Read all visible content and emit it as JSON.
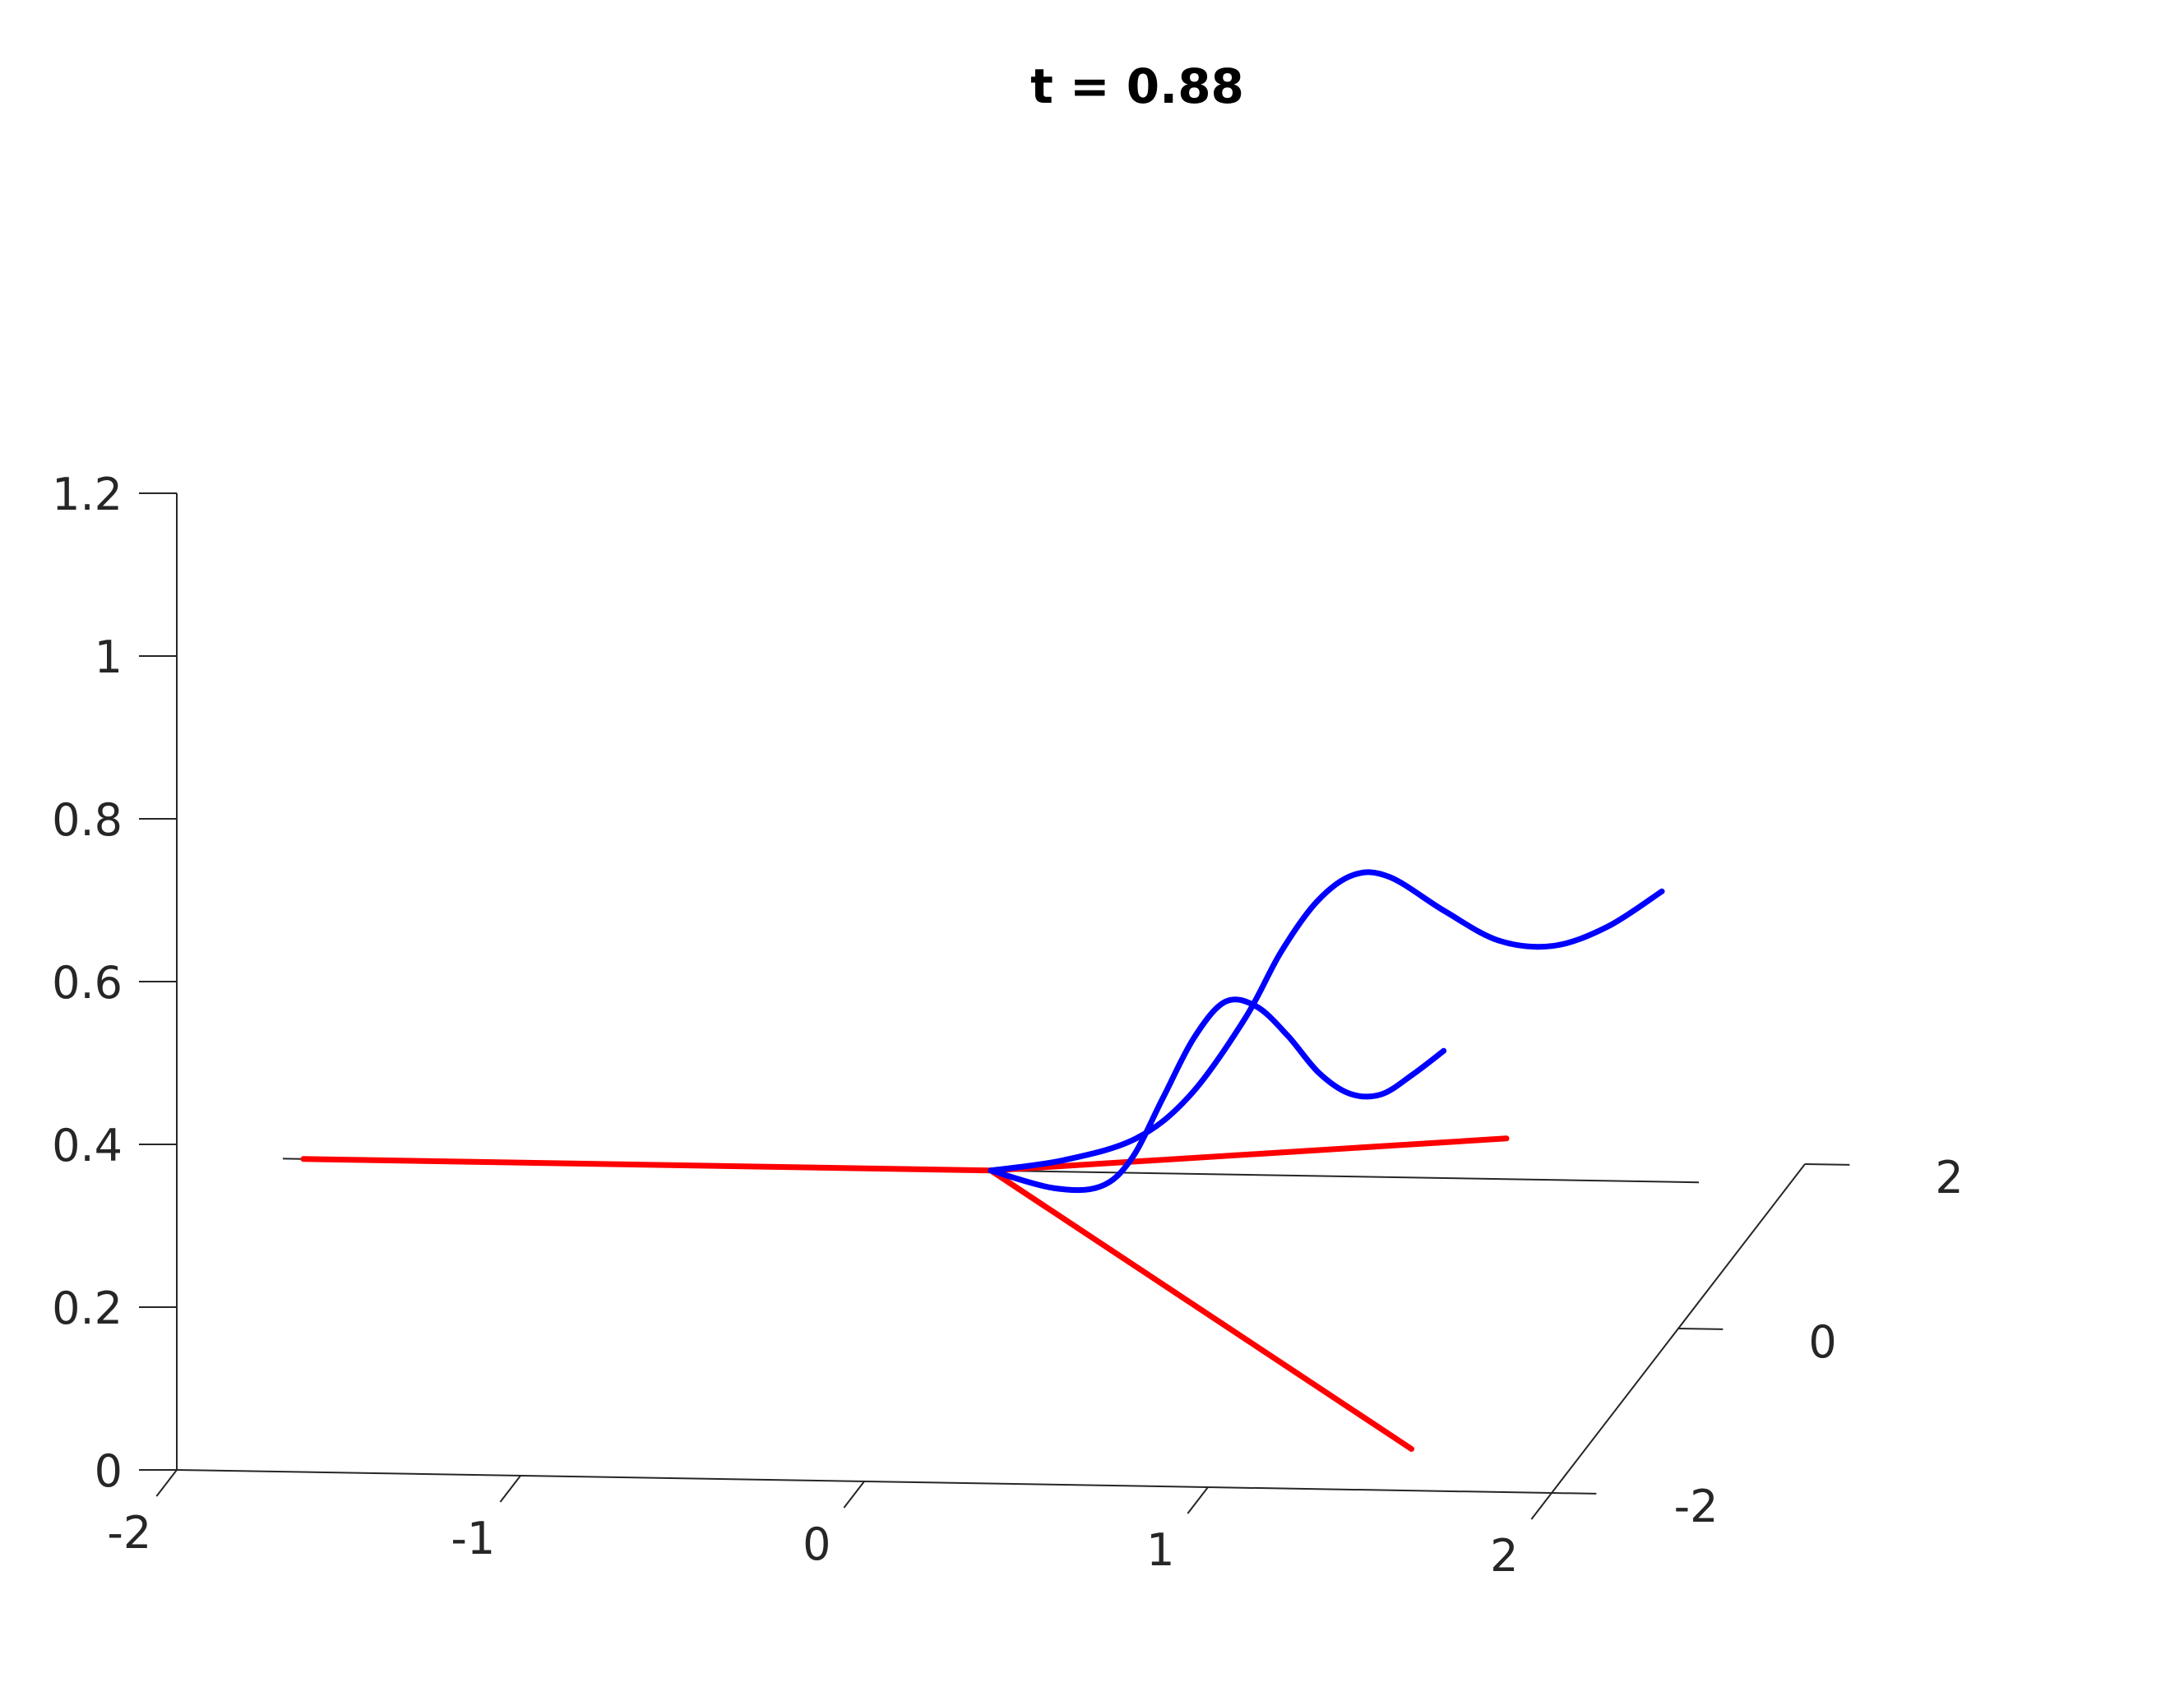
{
  "chart_data": {
    "type": "line",
    "projection": "3d",
    "title": "t = 0.88",
    "xlabel": "",
    "ylabel": "",
    "zlabel": "",
    "xlim": [
      -2,
      2
    ],
    "ylim": [
      -2,
      2
    ],
    "zlim": [
      0,
      1.2
    ],
    "x_ticks": [
      -2,
      -1,
      0,
      1,
      2
    ],
    "y_ticks": [
      -2,
      0,
      2
    ],
    "z_ticks": [
      0,
      0.2,
      0.4,
      0.6,
      0.8,
      1,
      1.2
    ],
    "x_tick_labels": [
      "-2",
      "-1",
      "0",
      "1",
      "2"
    ],
    "y_tick_labels": [
      "-2",
      "0",
      "2"
    ],
    "z_tick_labels": [
      "0",
      "0.2",
      "0.4",
      "0.6",
      "0.8",
      "1",
      "1.2"
    ],
    "grid": false,
    "colors": {
      "red_series": "#ff0000",
      "blue_series": "#0000ff",
      "axes": "#262626"
    },
    "series": [
      {
        "color": "#ff0000",
        "points": [
          [
            -2.0,
            0,
            0.18
          ],
          [
            0,
            0,
            0.18
          ],
          [
            1.5,
            0,
            0.23
          ]
        ]
      },
      {
        "color": "#ff0000",
        "points": [
          [
            0,
            0,
            0.18
          ],
          [
            1.5,
            -1.5,
            0.0
          ]
        ]
      },
      {
        "color": "#0000ff",
        "points": [
          [
            0.0,
            0.0,
            0.18
          ],
          [
            0.2,
            0.06,
            0.188
          ],
          [
            0.4,
            0.12,
            0.21
          ],
          [
            0.55,
            0.165,
            0.26
          ],
          [
            0.7,
            0.21,
            0.35
          ],
          [
            0.8,
            0.24,
            0.43
          ],
          [
            0.9,
            0.27,
            0.49
          ],
          [
            1.0,
            0.3,
            0.52
          ],
          [
            1.1,
            0.33,
            0.515
          ],
          [
            1.25,
            0.375,
            0.47
          ],
          [
            1.4,
            0.42,
            0.43
          ],
          [
            1.55,
            0.465,
            0.42
          ],
          [
            1.7,
            0.51,
            0.44
          ],
          [
            1.85,
            0.555,
            0.48
          ]
        ]
      },
      {
        "color": "#0000ff",
        "points": [
          [
            0.0,
            0.0,
            0.18
          ],
          [
            0.2,
            -0.1,
            0.17
          ],
          [
            0.35,
            -0.17,
            0.18
          ],
          [
            0.45,
            -0.22,
            0.22
          ],
          [
            0.55,
            -0.27,
            0.3
          ],
          [
            0.65,
            -0.32,
            0.38
          ],
          [
            0.75,
            -0.37,
            0.43
          ],
          [
            0.85,
            -0.42,
            0.43
          ],
          [
            0.95,
            -0.47,
            0.4
          ],
          [
            1.05,
            -0.52,
            0.36
          ],
          [
            1.15,
            -0.57,
            0.34
          ],
          [
            1.25,
            -0.62,
            0.345
          ],
          [
            1.35,
            -0.67,
            0.375
          ],
          [
            1.45,
            -0.72,
            0.41
          ]
        ]
      }
    ]
  }
}
